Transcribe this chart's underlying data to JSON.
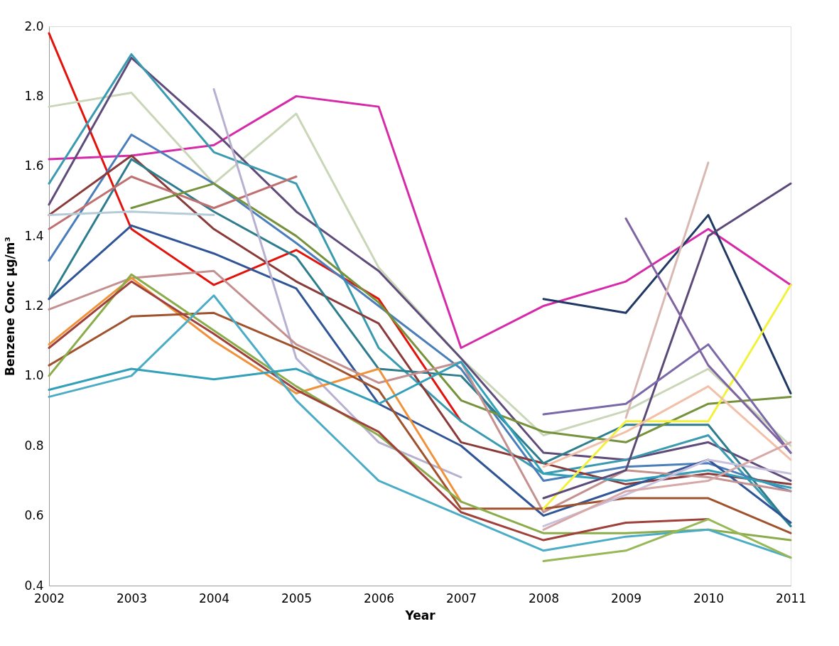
{
  "chart_data": {
    "type": "line",
    "xlabel": "Year",
    "ylabel": "Benzene Conc µg/m³",
    "x": [
      2002,
      2003,
      2004,
      2005,
      2006,
      2007,
      2008,
      2009,
      2010,
      2011
    ],
    "xlim": [
      2002,
      2011
    ],
    "xticks": [
      2002,
      2003,
      2004,
      2005,
      2006,
      2007,
      2008,
      2009,
      2010,
      2011
    ],
    "ylim": [
      0.4,
      2.0
    ],
    "yticks": [
      {
        "value": 0.4,
        "label": "0.4"
      },
      {
        "value": 0.6,
        "label": "0.6"
      },
      {
        "value": 0.8,
        "label": "0.8"
      },
      {
        "value": 1.0,
        "label": "1.0"
      },
      {
        "value": 1.2,
        "label": "1.2"
      },
      {
        "value": 1.4,
        "label": "1.4"
      },
      {
        "value": 1.6,
        "label": "1.6"
      },
      {
        "value": 1.8,
        "label": "1.8"
      },
      {
        "value": 2.0,
        "label": "2.0"
      }
    ],
    "grid": false,
    "legend": false,
    "marker": "none",
    "line_style": "solid",
    "series": [
      {
        "color": "#e3120b",
        "values": [
          1.98,
          1.42,
          1.26,
          1.36,
          1.22,
          0.87,
          null,
          null,
          null,
          null
        ]
      },
      {
        "color": "#d62aa8",
        "values": [
          1.62,
          1.63,
          1.66,
          1.8,
          1.77,
          1.08,
          1.2,
          1.27,
          1.42,
          1.26
        ]
      },
      {
        "color": "#c9d6b8",
        "values": [
          1.77,
          1.81,
          1.55,
          1.75,
          1.31,
          1.05,
          0.83,
          0.9,
          1.02,
          0.8
        ]
      },
      {
        "color": "#5e4b7a",
        "values": [
          1.49,
          1.91,
          1.7,
          1.47,
          1.3,
          1.05,
          0.78,
          0.76,
          0.81,
          0.7
        ]
      },
      {
        "color": "#3a9bb0",
        "values": [
          1.55,
          1.92,
          1.64,
          1.55,
          1.08,
          0.87,
          0.72,
          0.76,
          0.83,
          0.57
        ]
      },
      {
        "color": "#4a7ebb",
        "values": [
          1.33,
          1.69,
          1.55,
          1.38,
          1.2,
          1.02,
          0.7,
          0.74,
          0.75,
          0.67
        ]
      },
      {
        "color": "#8b3a3a",
        "values": [
          1.46,
          1.63,
          1.42,
          1.27,
          1.15,
          0.81,
          0.75,
          0.69,
          0.72,
          0.69
        ]
      },
      {
        "color": "#2e7d8c",
        "values": [
          1.22,
          1.62,
          1.47,
          1.34,
          1.02,
          1.0,
          0.75,
          0.86,
          0.86,
          0.57
        ]
      },
      {
        "color": "#c07070",
        "values": [
          1.42,
          1.57,
          1.48,
          1.57,
          null,
          null,
          null,
          null,
          null,
          null
        ]
      },
      {
        "color": "#76923c",
        "values": [
          null,
          1.48,
          1.55,
          1.4,
          1.21,
          0.93,
          0.84,
          0.81,
          0.92,
          0.94
        ]
      },
      {
        "color": "#b4ccd8",
        "values": [
          1.46,
          1.47,
          1.46,
          null,
          null,
          null,
          null,
          null,
          null,
          null
        ]
      },
      {
        "color": "#2f5597",
        "values": [
          1.22,
          1.43,
          1.35,
          1.25,
          0.92,
          0.8,
          0.6,
          0.68,
          0.76,
          0.58
        ]
      },
      {
        "color": "#b7b0d0",
        "values": [
          null,
          null,
          1.82,
          1.05,
          0.81,
          0.71,
          null,
          null,
          null,
          null
        ]
      },
      {
        "color": "#c49090",
        "values": [
          1.19,
          1.28,
          1.3,
          1.09,
          0.98,
          1.04,
          0.61,
          0.73,
          0.71,
          0.67
        ]
      },
      {
        "color": "#f0923a",
        "values": [
          1.09,
          1.28,
          1.1,
          0.95,
          1.02,
          0.64,
          null,
          null,
          null,
          null
        ]
      },
      {
        "color": "#a0522d",
        "values": [
          1.03,
          1.17,
          1.18,
          1.08,
          0.96,
          0.62,
          0.62,
          0.65,
          0.65,
          0.55
        ]
      },
      {
        "color": "#8aac4a",
        "values": [
          1.0,
          1.29,
          1.13,
          0.97,
          0.83,
          0.64,
          0.55,
          0.55,
          0.56,
          0.53
        ]
      },
      {
        "color": "#a0403a",
        "values": [
          1.08,
          1.27,
          1.12,
          0.96,
          0.84,
          0.61,
          0.53,
          0.58,
          0.59,
          null
        ]
      },
      {
        "color": "#4bacc6",
        "values": [
          0.94,
          1.0,
          1.23,
          0.93,
          0.7,
          0.6,
          0.5,
          0.54,
          0.56,
          0.48
        ]
      },
      {
        "color": "#31a0b8",
        "values": [
          0.96,
          1.02,
          0.99,
          1.02,
          0.92,
          1.04,
          0.72,
          0.7,
          0.73,
          0.68
        ]
      },
      {
        "color": "#1f3864",
        "values": [
          null,
          null,
          null,
          null,
          null,
          null,
          1.22,
          1.18,
          1.46,
          0.95
        ]
      },
      {
        "color": "#f2f23a",
        "values": [
          null,
          null,
          null,
          null,
          null,
          null,
          0.62,
          0.87,
          0.87,
          1.26
        ]
      },
      {
        "color": "#5b4a78",
        "values": [
          null,
          null,
          null,
          null,
          null,
          null,
          0.65,
          0.73,
          1.4,
          1.55
        ]
      },
      {
        "color": "#8064a2",
        "values": [
          null,
          null,
          null,
          null,
          null,
          null,
          null,
          1.45,
          1.03,
          0.78
        ]
      },
      {
        "color": "#d9b8b3",
        "values": [
          null,
          null,
          null,
          null,
          null,
          null,
          null,
          0.88,
          1.61,
          null
        ]
      },
      {
        "color": "#7a68a8",
        "values": [
          null,
          null,
          null,
          null,
          null,
          null,
          0.89,
          0.92,
          1.09,
          0.78
        ]
      },
      {
        "color": "#98b858",
        "values": [
          null,
          null,
          null,
          null,
          null,
          null,
          0.47,
          0.5,
          0.59,
          0.48
        ]
      },
      {
        "color": "#f2c0a8",
        "values": [
          null,
          null,
          null,
          null,
          null,
          null,
          0.74,
          0.84,
          0.97,
          0.76
        ]
      },
      {
        "color": "#c8c0dc",
        "values": [
          null,
          null,
          null,
          null,
          null,
          null,
          0.57,
          0.66,
          0.76,
          0.72
        ]
      },
      {
        "color": "#d8a8a8",
        "values": [
          null,
          null,
          null,
          null,
          null,
          null,
          0.56,
          0.67,
          0.7,
          0.81
        ]
      }
    ]
  }
}
